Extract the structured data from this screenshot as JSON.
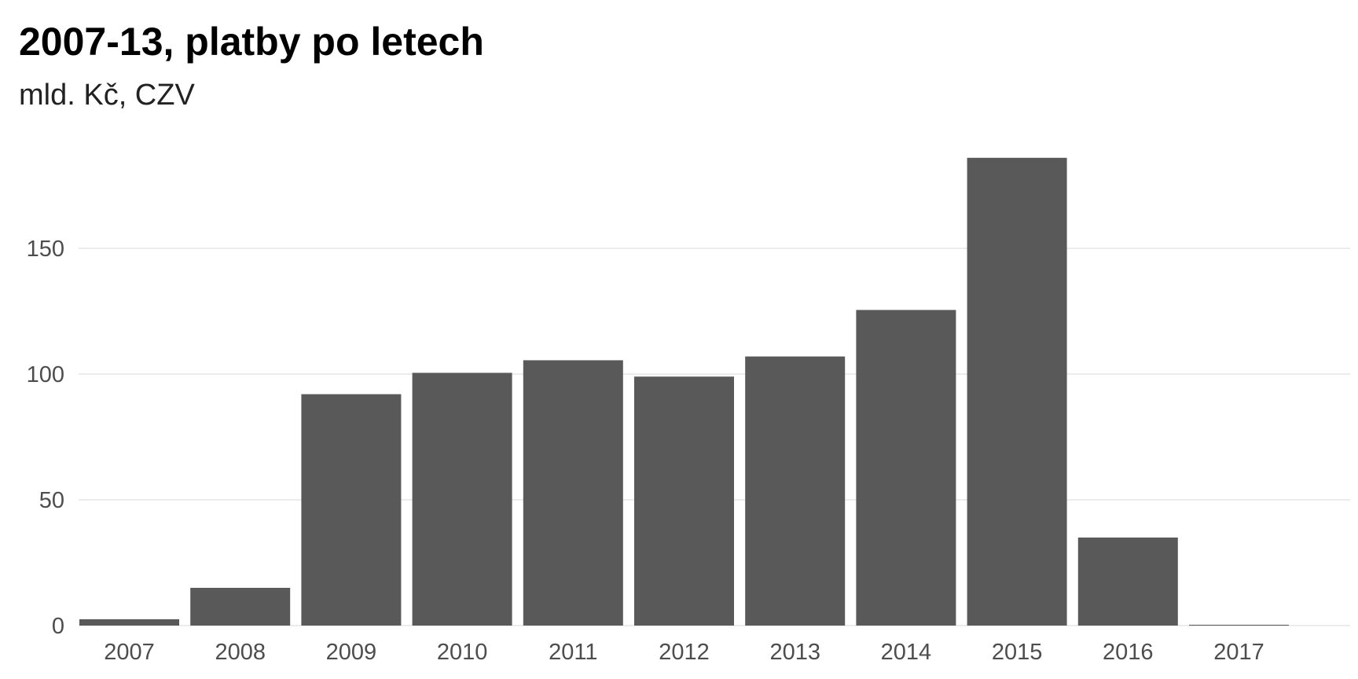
{
  "chart_data": {
    "type": "bar",
    "title": "2007-13, platby po letech",
    "subtitle": "mld. Kč, CZV",
    "xlabel": "",
    "ylabel": "",
    "categories": [
      "2007",
      "2008",
      "2009",
      "2010",
      "2011",
      "2012",
      "2013",
      "2014",
      "2015",
      "2016",
      "2017"
    ],
    "values": [
      2.5,
      15,
      92,
      100.5,
      105.5,
      99,
      107,
      125.5,
      186,
      35,
      0.3
    ],
    "ylim": [
      0,
      190
    ],
    "yticks": [
      0,
      50,
      100,
      150
    ],
    "grid": true,
    "legend": "none",
    "bar_color": "#595959",
    "grid_color": "#ebebeb"
  }
}
